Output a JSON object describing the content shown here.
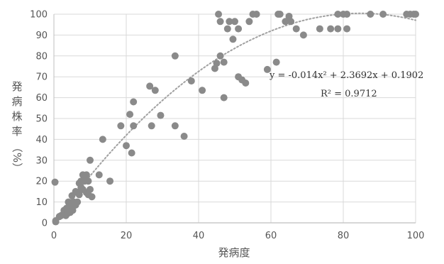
{
  "chart_data": {
    "type": "scatter",
    "xlabel": "発病度",
    "ylabel": "発病株率（%）",
    "ylabel_chars": [
      "発",
      "病",
      "株",
      "率"
    ],
    "ylabel_unit": "（%）",
    "xlim": [
      0,
      100
    ],
    "ylim": [
      0,
      100
    ],
    "xticks": [
      0,
      20,
      40,
      60,
      80,
      100
    ],
    "yticks": [
      0,
      10,
      20,
      30,
      40,
      50,
      60,
      70,
      80,
      90,
      100
    ],
    "grid": true,
    "trendline": {
      "type": "polynomial",
      "coefficients": [
        -0.014,
        2.3692,
        0.1902
      ],
      "style": "dotted",
      "equation_text": "y = -0.014x² + 2.3692x + 0.1902",
      "r2_text": "R² = 0.9712"
    },
    "colors": {
      "points": "#8a8a8a",
      "trend": "#a0a0a0",
      "grid": "#d9d9d9",
      "axis": "#bfbfbf"
    },
    "series": [
      {
        "values": [
          [
            0.3,
            19.5
          ],
          [
            0.5,
            0.5
          ],
          [
            0.5,
            1.0
          ],
          [
            1.5,
            3.0
          ],
          [
            2.0,
            3.5
          ],
          [
            2.5,
            4.0
          ],
          [
            2.8,
            6.0
          ],
          [
            3.0,
            5.0
          ],
          [
            3.3,
            3.5
          ],
          [
            3.5,
            7.0
          ],
          [
            3.8,
            4.5
          ],
          [
            4.0,
            6.5
          ],
          [
            4.0,
            10.0
          ],
          [
            4.5,
            5.0
          ],
          [
            4.5,
            8.0
          ],
          [
            5.0,
            7.0
          ],
          [
            5.0,
            13.0
          ],
          [
            5.2,
            6.0
          ],
          [
            5.5,
            10.0
          ],
          [
            5.5,
            9.0
          ],
          [
            6.0,
            15.0
          ],
          [
            6.0,
            8.5
          ],
          [
            6.5,
            14.5
          ],
          [
            6.5,
            10.0
          ],
          [
            7.0,
            13.5
          ],
          [
            7.0,
            19.0
          ],
          [
            7.5,
            17.0
          ],
          [
            7.5,
            20.0
          ],
          [
            8.0,
            23.0
          ],
          [
            8.0,
            16.0
          ],
          [
            8.5,
            20.0
          ],
          [
            9.0,
            14.5
          ],
          [
            9.0,
            23.0
          ],
          [
            9.5,
            13.5
          ],
          [
            9.5,
            20.0
          ],
          [
            10.0,
            16.0
          ],
          [
            10.0,
            30.0
          ],
          [
            10.5,
            12.5
          ],
          [
            12.5,
            23.0
          ],
          [
            13.5,
            40.0
          ],
          [
            15.5,
            20.0
          ],
          [
            18.5,
            46.5
          ],
          [
            20.0,
            37.0
          ],
          [
            21.0,
            52.0
          ],
          [
            21.5,
            33.5
          ],
          [
            22.0,
            46.5
          ],
          [
            22.0,
            58.0
          ],
          [
            26.5,
            65.5
          ],
          [
            27.0,
            46.5
          ],
          [
            28.0,
            63.5
          ],
          [
            29.5,
            51.5
          ],
          [
            33.5,
            80.0
          ],
          [
            33.5,
            46.5
          ],
          [
            36.0,
            41.5
          ],
          [
            38.0,
            68.0
          ],
          [
            41.0,
            63.5
          ],
          [
            44.5,
            74.0
          ],
          [
            45.0,
            76.5
          ],
          [
            45.5,
            100.0
          ],
          [
            46.0,
            96.5
          ],
          [
            46.0,
            80.0
          ],
          [
            47.0,
            77.0
          ],
          [
            47.0,
            60.0
          ],
          [
            48.0,
            93.0
          ],
          [
            48.5,
            96.5
          ],
          [
            49.5,
            88.0
          ],
          [
            50.0,
            96.5
          ],
          [
            51.0,
            93.0
          ],
          [
            51.0,
            70.0
          ],
          [
            52.0,
            68.5
          ],
          [
            53.0,
            67.0
          ],
          [
            54.0,
            96.5
          ],
          [
            55.0,
            100.0
          ],
          [
            56.0,
            100.0
          ],
          [
            59.0,
            73.5
          ],
          [
            61.5,
            77.0
          ],
          [
            62.0,
            100.0
          ],
          [
            62.5,
            100.0
          ],
          [
            64.0,
            96.5
          ],
          [
            65.0,
            99.0
          ],
          [
            65.5,
            96.5
          ],
          [
            67.0,
            93.0
          ],
          [
            69.0,
            90.0
          ],
          [
            73.5,
            93.0
          ],
          [
            76.5,
            93.0
          ],
          [
            78.5,
            93.0
          ],
          [
            78.5,
            100.0
          ],
          [
            80.0,
            100.0
          ],
          [
            81.0,
            100.0
          ],
          [
            81.0,
            93.0
          ],
          [
            87.5,
            100.0
          ],
          [
            91.0,
            100.0
          ],
          [
            97.5,
            100.0
          ],
          [
            98.5,
            100.0
          ],
          [
            99.5,
            100.0
          ],
          [
            100.0,
            100.0
          ]
        ]
      }
    ]
  }
}
